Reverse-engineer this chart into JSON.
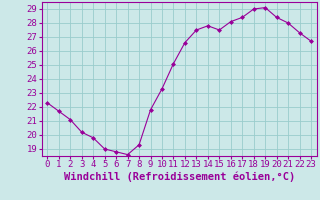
{
  "x": [
    0,
    1,
    2,
    3,
    4,
    5,
    6,
    7,
    8,
    9,
    10,
    11,
    12,
    13,
    14,
    15,
    16,
    17,
    18,
    19,
    20,
    21,
    22,
    23
  ],
  "y": [
    22.3,
    21.7,
    21.1,
    20.2,
    19.8,
    19.0,
    18.8,
    18.6,
    19.3,
    21.8,
    23.3,
    25.1,
    26.6,
    27.5,
    27.8,
    27.5,
    28.1,
    28.4,
    29.0,
    29.1,
    28.4,
    28.0,
    27.3,
    26.7
  ],
  "line_color": "#990099",
  "marker_color": "#990099",
  "bg_color": "#cce8e8",
  "grid_color": "#99cccc",
  "xlabel": "Windchill (Refroidissement éolien,°C)",
  "xlabel_color": "#990099",
  "tick_color": "#990099",
  "axis_color": "#990099",
  "ylim": [
    18.5,
    29.5
  ],
  "yticks": [
    19,
    20,
    21,
    22,
    23,
    24,
    25,
    26,
    27,
    28,
    29
  ],
  "xticks": [
    0,
    1,
    2,
    3,
    4,
    5,
    6,
    7,
    8,
    9,
    10,
    11,
    12,
    13,
    14,
    15,
    16,
    17,
    18,
    19,
    20,
    21,
    22,
    23
  ],
  "xtick_labels": [
    "0",
    "1",
    "2",
    "3",
    "4",
    "5",
    "6",
    "7",
    "8",
    "9",
    "10",
    "11",
    "12",
    "13",
    "14",
    "15",
    "16",
    "17",
    "18",
    "19",
    "20",
    "21",
    "22",
    "23"
  ],
  "tick_font_size": 6.5,
  "xlabel_font_size": 7.5
}
